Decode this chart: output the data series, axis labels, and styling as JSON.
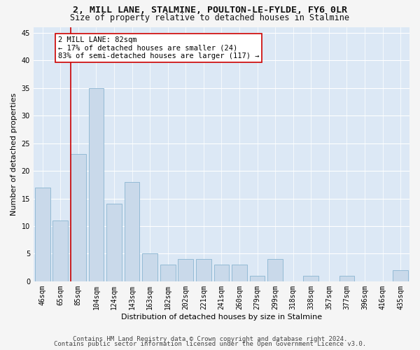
{
  "title1": "2, MILL LANE, STALMINE, POULTON-LE-FYLDE, FY6 0LR",
  "title2": "Size of property relative to detached houses in Stalmine",
  "xlabel": "Distribution of detached houses by size in Stalmine",
  "ylabel": "Number of detached properties",
  "categories": [
    "46sqm",
    "65sqm",
    "85sqm",
    "104sqm",
    "124sqm",
    "143sqm",
    "163sqm",
    "182sqm",
    "202sqm",
    "221sqm",
    "241sqm",
    "260sqm",
    "279sqm",
    "299sqm",
    "318sqm",
    "338sqm",
    "357sqm",
    "377sqm",
    "396sqm",
    "416sqm",
    "435sqm"
  ],
  "values": [
    17,
    11,
    23,
    35,
    14,
    18,
    5,
    3,
    4,
    4,
    3,
    3,
    1,
    4,
    0,
    1,
    0,
    1,
    0,
    0,
    2
  ],
  "bar_color": "#c9d9ea",
  "bar_edge_color": "#8ab4d0",
  "annotation_text_line1": "2 MILL LANE: 82sqm",
  "annotation_text_line2": "← 17% of detached houses are smaller (24)",
  "annotation_text_line3": "83% of semi-detached houses are larger (117) →",
  "vline_index": 2,
  "vline_color": "#cc0000",
  "ylim": [
    0,
    46
  ],
  "yticks": [
    0,
    5,
    10,
    15,
    20,
    25,
    30,
    35,
    40,
    45
  ],
  "footer_line1": "Contains HM Land Registry data © Crown copyright and database right 2024.",
  "footer_line2": "Contains public sector information licensed under the Open Government Licence v3.0.",
  "fig_bg_color": "#f5f5f5",
  "plot_bg_color": "#dce8f5",
  "grid_color": "#ffffff",
  "title_fontsize": 9.5,
  "subtitle_fontsize": 8.5,
  "axis_label_fontsize": 8,
  "tick_fontsize": 7,
  "annotation_fontsize": 7.5,
  "footer_fontsize": 6.5
}
